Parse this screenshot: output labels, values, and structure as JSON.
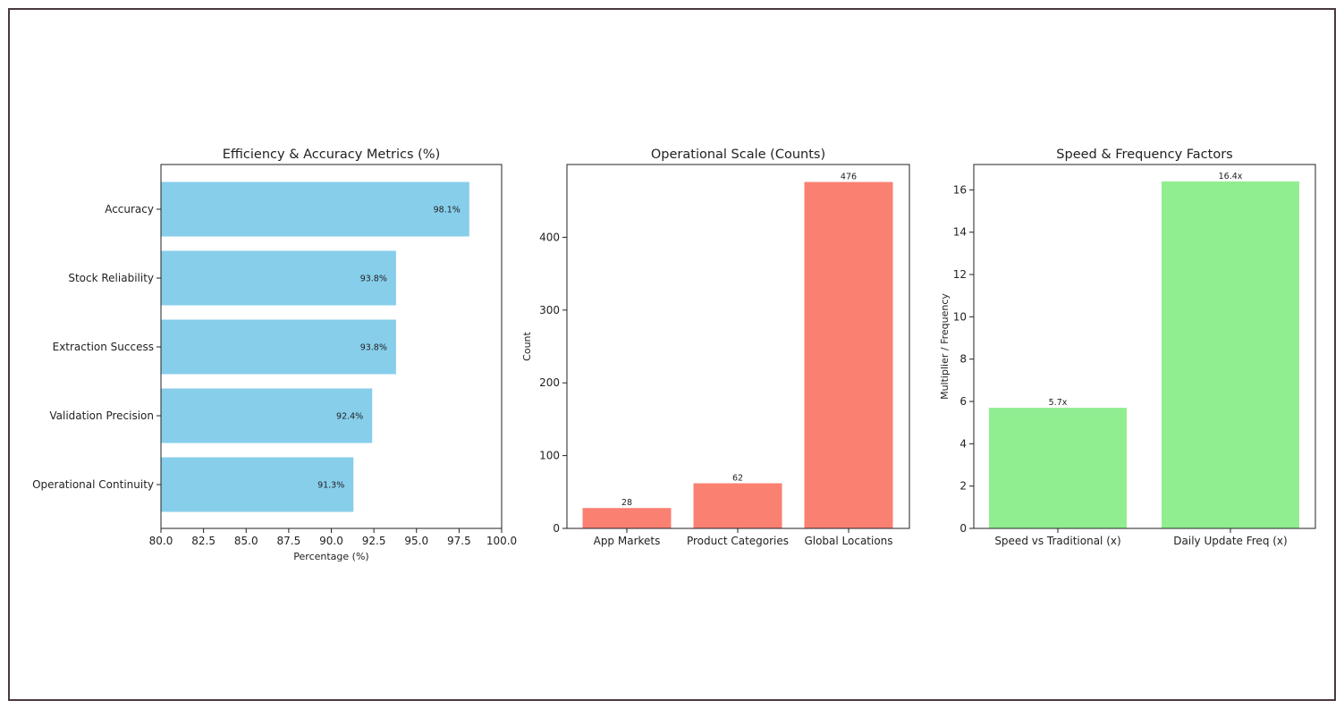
{
  "colors": {
    "frame_border": "#4a3a3c",
    "bar_blue": "#87CEEB",
    "bar_salmon": "#FA8072",
    "bar_green": "#90EE90",
    "axis": "#222222"
  },
  "chart_data": [
    {
      "type": "bar",
      "orientation": "horizontal",
      "title": "Efficiency & Accuracy Metrics (%)",
      "xlabel": "Percentage (%)",
      "ylabel": "",
      "categories": [
        "Accuracy",
        "Stock Reliability",
        "Extraction Success",
        "Validation Precision",
        "Operational Continuity"
      ],
      "values": [
        98.1,
        93.8,
        93.8,
        92.4,
        91.3
      ],
      "labels": [
        "98.1%",
        "93.8%",
        "93.8%",
        "92.4%",
        "91.3%"
      ],
      "xlim": [
        80,
        100
      ],
      "ticks": [
        "80.0",
        "82.5",
        "85.0",
        "87.5",
        "90.0",
        "92.5",
        "95.0",
        "97.5",
        "100.0"
      ],
      "color": "#87CEEB"
    },
    {
      "type": "bar",
      "title": "Operational Scale (Counts)",
      "xlabel": "",
      "ylabel": "Count",
      "categories": [
        "App Markets",
        "Product Categories",
        "Global Locations"
      ],
      "values": [
        28,
        62,
        476
      ],
      "labels": [
        "28",
        "62",
        "476"
      ],
      "ylim": [
        0,
        500
      ],
      "ticks": [
        "0",
        "100",
        "200",
        "300",
        "400"
      ],
      "color": "#FA8072"
    },
    {
      "type": "bar",
      "title": "Speed & Frequency Factors",
      "xlabel": "",
      "ylabel": "Multiplier / Frequency",
      "categories": [
        "Speed vs Traditional (x)",
        "Daily Update Freq (x)"
      ],
      "values": [
        5.7,
        16.4
      ],
      "labels": [
        "5.7x",
        "16.4x"
      ],
      "ylim": [
        0,
        17.2
      ],
      "ticks": [
        "0",
        "2",
        "4",
        "6",
        "8",
        "10",
        "12",
        "14",
        "16"
      ],
      "color": "#90EE90"
    }
  ]
}
